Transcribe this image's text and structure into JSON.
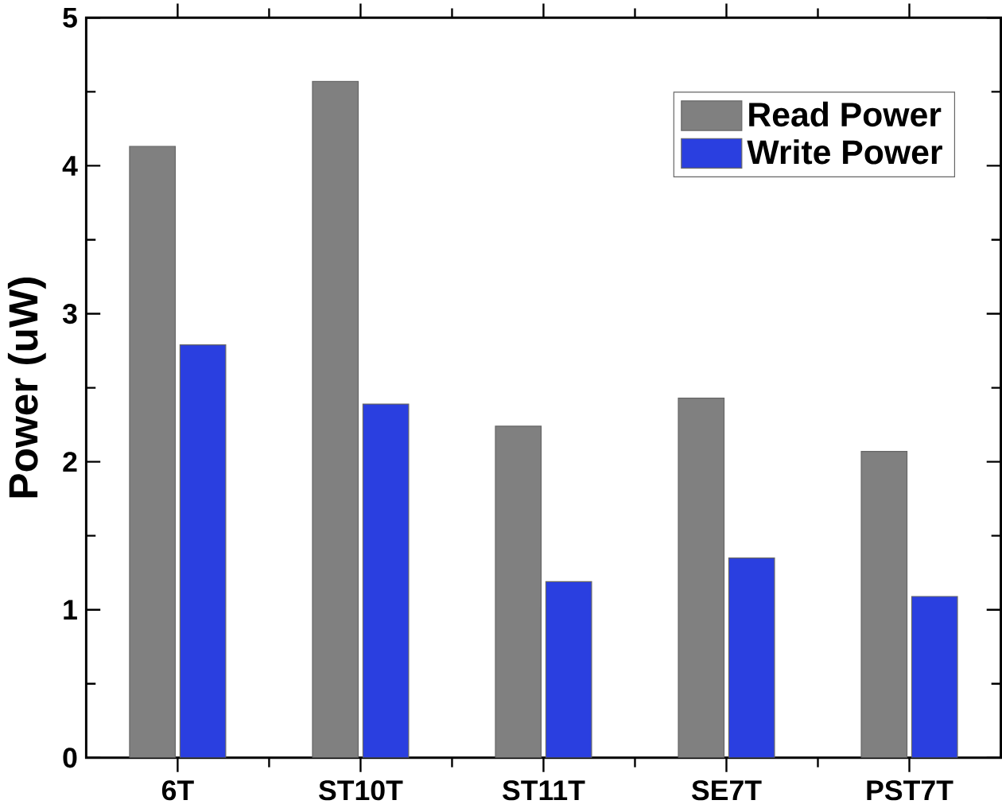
{
  "chart_data": {
    "type": "bar",
    "ylabel": "Power (uW)",
    "categories": [
      "6T",
      "ST10T",
      "ST11T",
      "SE7T",
      "PST7T"
    ],
    "series": [
      {
        "name": "Read Power",
        "color": "#808080",
        "values": [
          4.13,
          4.57,
          2.24,
          2.43,
          2.07
        ]
      },
      {
        "name": "Write Power",
        "color": "#2a3fe0",
        "values": [
          2.79,
          2.39,
          1.19,
          1.35,
          1.09
        ]
      }
    ],
    "ylim": [
      0,
      5
    ],
    "yticks": [
      0,
      1,
      2,
      3,
      4,
      5
    ],
    "legend": "top right",
    "grid": false
  }
}
